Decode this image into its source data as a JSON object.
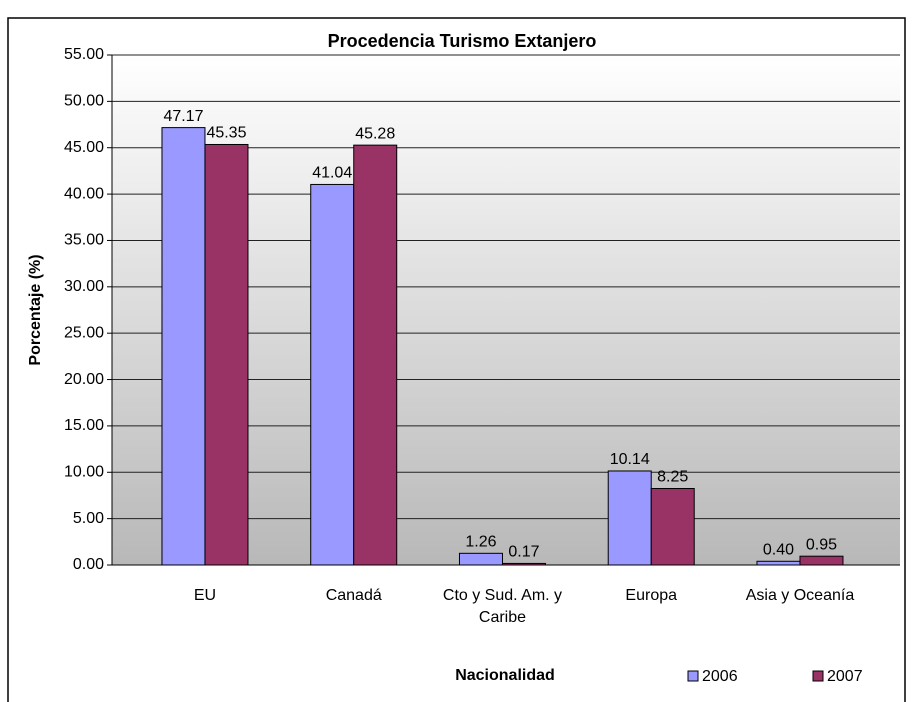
{
  "chart_data": {
    "type": "bar",
    "title": "Procedencia Turismo Extanjero",
    "x_label": "Nacionalidad",
    "y_label": "Porcentaje (%)",
    "categories": [
      "EU",
      "Canadá",
      "Cto y Sud. Am. y Caribe",
      "Europa",
      "Asia y Oceanía"
    ],
    "series": [
      {
        "name": "2006",
        "color": "#9999ff",
        "values": [
          47.17,
          41.04,
          1.26,
          10.14,
          0.4
        ],
        "value_labels": [
          "47.17",
          "41.04",
          "1.26",
          "10.14",
          "0.40"
        ]
      },
      {
        "name": "2007",
        "color": "#993366",
        "values": [
          45.35,
          45.28,
          0.17,
          8.25,
          0.95
        ],
        "value_labels": [
          "45.35",
          "45.28",
          "0.17",
          "8.25",
          "0.95"
        ]
      }
    ],
    "ylim": [
      0,
      55
    ],
    "yticks": [
      {
        "value": 0,
        "label": "0.00"
      },
      {
        "value": 5,
        "label": "5.00"
      },
      {
        "value": 10,
        "label": "10.00"
      },
      {
        "value": 15,
        "label": "15.00"
      },
      {
        "value": 20,
        "label": "20.00"
      },
      {
        "value": 25,
        "label": "25.00"
      },
      {
        "value": 30,
        "label": "30.00"
      },
      {
        "value": 35,
        "label": "35.00"
      },
      {
        "value": 40,
        "label": "40.00"
      },
      {
        "value": 45,
        "label": "45.00"
      },
      {
        "value": 50,
        "label": "50.00"
      },
      {
        "value": 55,
        "label": "55.00"
      }
    ],
    "grid": true,
    "legend": "bottom-right"
  }
}
